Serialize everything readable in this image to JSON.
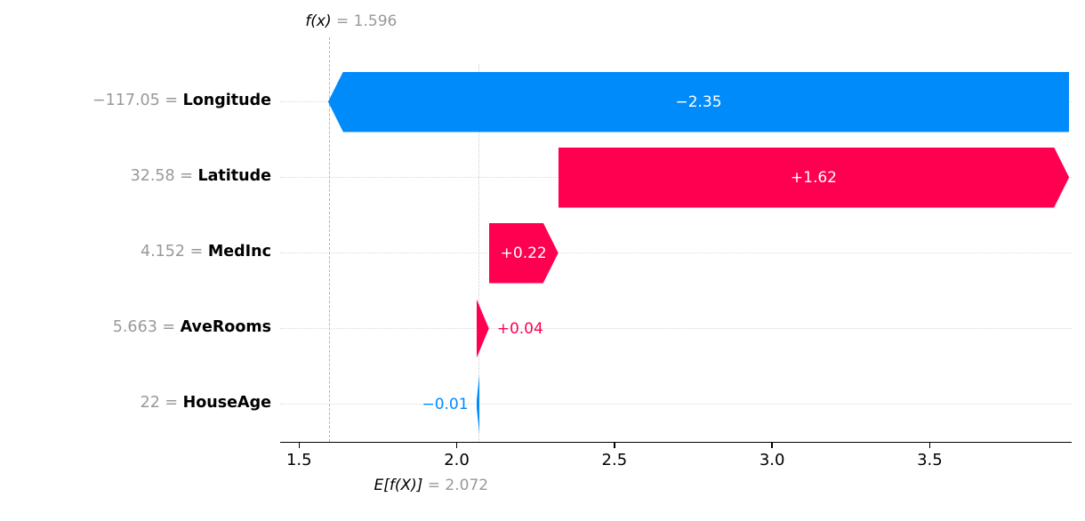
{
  "chart_data": {
    "type": "bar",
    "variant": "shap-waterfall",
    "title": "",
    "fx_value": 1.596,
    "base_value": 2.072,
    "xlim": [
      1.44,
      3.95
    ],
    "x_ticks": [
      1.5,
      2.0,
      2.5,
      3.0,
      3.5
    ],
    "x_tick_labels": [
      "1.5",
      "2.0",
      "2.5",
      "3.0",
      "3.5"
    ],
    "grid": "dotted-horizontal-per-row",
    "legend": "none",
    "labels": {
      "fx_symbol": "f(x)",
      "fx_text": " = 1.596",
      "base_symbol": "E[f(X)]",
      "base_text": " = 2.072",
      "equals_separator": " = "
    },
    "features": [
      {
        "name": "Longitude",
        "value_text": "−117.05",
        "shap": -2.35,
        "label": "−2.35",
        "start": 3.942,
        "end": 1.592,
        "label_inside": true
      },
      {
        "name": "Latitude",
        "value_text": "32.58",
        "shap": 1.62,
        "label": "+1.62",
        "start": 2.322,
        "end": 3.942,
        "label_inside": true
      },
      {
        "name": "MedInc",
        "value_text": "4.152",
        "shap": 0.22,
        "label": "+0.22",
        "start": 2.102,
        "end": 2.322,
        "label_inside": true
      },
      {
        "name": "AveRooms",
        "value_text": "5.663",
        "shap": 0.04,
        "label": "+0.04",
        "start": 2.062,
        "end": 2.102,
        "label_inside": false
      },
      {
        "name": "HouseAge",
        "value_text": "22",
        "shap": -0.01,
        "label": "−0.01",
        "start": 2.072,
        "end": 2.062,
        "label_inside": false
      }
    ],
    "colors": {
      "positive": "#ff0051",
      "negative": "#008bfb",
      "muted_text": "#999999",
      "axis_text": "#000000"
    }
  }
}
